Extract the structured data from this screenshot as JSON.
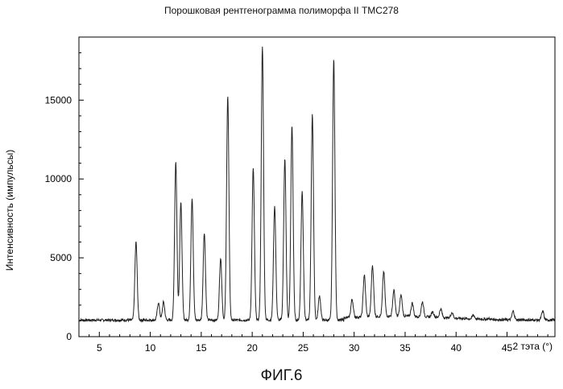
{
  "chart_data": {
    "type": "line",
    "title": "Порошковая рентгенограмма полиморфа II ТМС278",
    "xlabel": "2 тэта (°)",
    "ylabel": "Интенсивность (импульсы)",
    "caption": "ФИГ.6",
    "xlim": [
      3,
      49.7
    ],
    "ylim": [
      0,
      19000
    ],
    "xticks": [
      5,
      10,
      15,
      20,
      25,
      30,
      35,
      40,
      45
    ],
    "yticks": [
      0,
      5000,
      10000,
      15000
    ],
    "baseline": 1050,
    "peaks": [
      {
        "x": 8.6,
        "y": 6000
      },
      {
        "x": 10.8,
        "y": 2150
      },
      {
        "x": 11.3,
        "y": 2200
      },
      {
        "x": 12.5,
        "y": 11100
      },
      {
        "x": 13.0,
        "y": 8500
      },
      {
        "x": 14.1,
        "y": 8800
      },
      {
        "x": 15.3,
        "y": 6600
      },
      {
        "x": 16.9,
        "y": 5000
      },
      {
        "x": 17.6,
        "y": 15300
      },
      {
        "x": 20.1,
        "y": 10700
      },
      {
        "x": 21.0,
        "y": 18400
      },
      {
        "x": 22.2,
        "y": 8300
      },
      {
        "x": 23.2,
        "y": 11300
      },
      {
        "x": 23.9,
        "y": 13400
      },
      {
        "x": 24.9,
        "y": 9200
      },
      {
        "x": 25.9,
        "y": 14100
      },
      {
        "x": 26.6,
        "y": 2600
      },
      {
        "x": 28.0,
        "y": 17600
      },
      {
        "x": 29.8,
        "y": 2200
      },
      {
        "x": 31.0,
        "y": 3700
      },
      {
        "x": 31.8,
        "y": 4300
      },
      {
        "x": 32.9,
        "y": 3900
      },
      {
        "x": 33.9,
        "y": 2700
      },
      {
        "x": 34.6,
        "y": 2400
      },
      {
        "x": 35.7,
        "y": 1900
      },
      {
        "x": 36.7,
        "y": 2000
      },
      {
        "x": 37.7,
        "y": 1400
      },
      {
        "x": 38.5,
        "y": 1600
      },
      {
        "x": 39.6,
        "y": 1400
      },
      {
        "x": 41.7,
        "y": 1300
      },
      {
        "x": 43.2,
        "y": 1100
      },
      {
        "x": 45.6,
        "y": 1600
      },
      {
        "x": 48.5,
        "y": 1600
      }
    ]
  }
}
